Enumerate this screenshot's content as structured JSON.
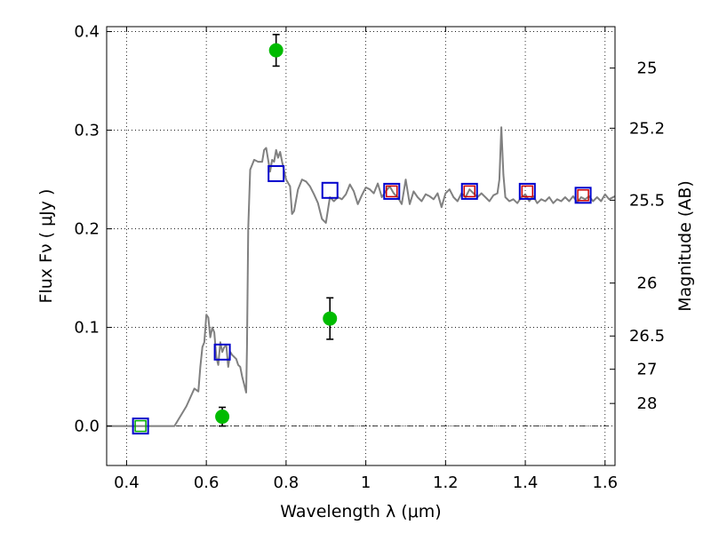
{
  "chart_data": {
    "type": "scatter",
    "xlabel": "Wavelength  λ (μm)",
    "ylabel": "Flux  Fν  ( μJy )",
    "y2label": "Magnitude (AB)",
    "xlim": [
      0.35,
      1.625
    ],
    "ylim": [
      -0.04,
      0.405
    ],
    "grid": true,
    "x_ticks": [
      0.4,
      0.6,
      0.8,
      1.0,
      1.2,
      1.4,
      1.6
    ],
    "x_tick_labels": [
      "0.4",
      "0.6",
      "0.8",
      "1",
      "1.2",
      "1.4",
      "1.6"
    ],
    "y_ticks": [
      0.0,
      0.1,
      0.2,
      0.3,
      0.4
    ],
    "y_tick_labels": [
      "0.0",
      "0.1",
      "0.2",
      "0.3",
      "0.4"
    ],
    "y2_ticks": [
      {
        "label": "25",
        "flux": 0.363
      },
      {
        "label": "25.2",
        "flux": 0.302
      },
      {
        "label": "25.5",
        "flux": 0.229
      },
      {
        "label": "26",
        "flux": 0.145
      },
      {
        "label": "26.5",
        "flux": 0.0913
      },
      {
        "label": "27",
        "flux": 0.0576
      },
      {
        "label": "28",
        "flux": 0.0229
      }
    ],
    "series": [
      {
        "kind": "model_spectrum",
        "color": "#808080",
        "x": [
          0.35,
          0.52,
          0.55,
          0.57,
          0.58,
          0.585,
          0.59,
          0.595,
          0.6,
          0.605,
          0.61,
          0.615,
          0.62,
          0.625,
          0.63,
          0.635,
          0.64,
          0.645,
          0.65,
          0.655,
          0.66,
          0.665,
          0.67,
          0.675,
          0.68,
          0.685,
          0.69,
          0.695,
          0.7,
          0.702,
          0.705,
          0.71,
          0.72,
          0.73,
          0.74,
          0.745,
          0.75,
          0.76,
          0.765,
          0.77,
          0.775,
          0.78,
          0.785,
          0.79,
          0.8,
          0.81,
          0.815,
          0.82,
          0.83,
          0.84,
          0.85,
          0.86,
          0.87,
          0.88,
          0.885,
          0.89,
          0.9,
          0.91,
          0.92,
          0.93,
          0.94,
          0.95,
          0.96,
          0.97,
          0.98,
          0.99,
          1.0,
          1.01,
          1.02,
          1.03,
          1.04,
          1.05,
          1.06,
          1.07,
          1.08,
          1.09,
          1.1,
          1.11,
          1.12,
          1.13,
          1.14,
          1.15,
          1.16,
          1.17,
          1.18,
          1.19,
          1.2,
          1.21,
          1.22,
          1.23,
          1.24,
          1.25,
          1.26,
          1.27,
          1.28,
          1.29,
          1.3,
          1.31,
          1.32,
          1.33,
          1.335,
          1.34,
          1.345,
          1.35,
          1.36,
          1.37,
          1.38,
          1.39,
          1.4,
          1.41,
          1.42,
          1.43,
          1.44,
          1.45,
          1.46,
          1.47,
          1.48,
          1.49,
          1.5,
          1.51,
          1.52,
          1.53,
          1.54,
          1.55,
          1.56,
          1.57,
          1.58,
          1.59,
          1.6,
          1.61,
          1.625
        ],
        "y": [
          0.0,
          0.0,
          0.02,
          0.038,
          0.035,
          0.06,
          0.08,
          0.085,
          0.113,
          0.11,
          0.09,
          0.1,
          0.095,
          0.07,
          0.062,
          0.085,
          0.075,
          0.08,
          0.082,
          0.06,
          0.075,
          0.072,
          0.07,
          0.068,
          0.062,
          0.06,
          0.05,
          0.042,
          0.034,
          0.08,
          0.2,
          0.26,
          0.27,
          0.268,
          0.268,
          0.28,
          0.282,
          0.258,
          0.27,
          0.268,
          0.28,
          0.272,
          0.278,
          0.268,
          0.25,
          0.243,
          0.215,
          0.218,
          0.24,
          0.25,
          0.248,
          0.243,
          0.235,
          0.226,
          0.218,
          0.21,
          0.206,
          0.232,
          0.228,
          0.232,
          0.23,
          0.235,
          0.245,
          0.238,
          0.225,
          0.234,
          0.242,
          0.24,
          0.236,
          0.246,
          0.232,
          0.238,
          0.243,
          0.236,
          0.232,
          0.225,
          0.25,
          0.225,
          0.238,
          0.232,
          0.228,
          0.235,
          0.233,
          0.23,
          0.236,
          0.222,
          0.236,
          0.24,
          0.232,
          0.228,
          0.236,
          0.232,
          0.24,
          0.236,
          0.232,
          0.236,
          0.232,
          0.228,
          0.234,
          0.236,
          0.25,
          0.303,
          0.255,
          0.232,
          0.228,
          0.23,
          0.226,
          0.232,
          0.235,
          0.228,
          0.233,
          0.226,
          0.23,
          0.228,
          0.232,
          0.226,
          0.23,
          0.228,
          0.232,
          0.228,
          0.233,
          0.227,
          0.232,
          0.23,
          0.233,
          0.228,
          0.232,
          0.228,
          0.235,
          0.23,
          0.233
        ]
      },
      {
        "kind": "observed_blue_squares",
        "color": "#0000cc",
        "x": [
          0.435,
          0.64,
          0.775,
          0.91,
          1.065,
          1.26,
          1.405,
          1.545
        ],
        "y": [
          0.0,
          0.075,
          0.256,
          0.239,
          0.238,
          0.238,
          0.238,
          0.234
        ]
      },
      {
        "kind": "model_red_squares",
        "color": "#cc0000",
        "x": [
          1.065,
          1.26,
          1.405,
          1.545
        ],
        "y": [
          0.238,
          0.238,
          0.238,
          0.234
        ]
      },
      {
        "kind": "model_green_squares",
        "color": "#00aa00",
        "x": [
          0.435
        ],
        "y": [
          0.0
        ]
      },
      {
        "kind": "green_points_with_errorbars",
        "color": "#00bb00",
        "x": [
          0.64,
          0.775,
          0.91
        ],
        "y": [
          0.0095,
          0.381,
          0.109
        ],
        "yerr": [
          0.0095,
          0.016,
          0.021
        ]
      }
    ]
  }
}
